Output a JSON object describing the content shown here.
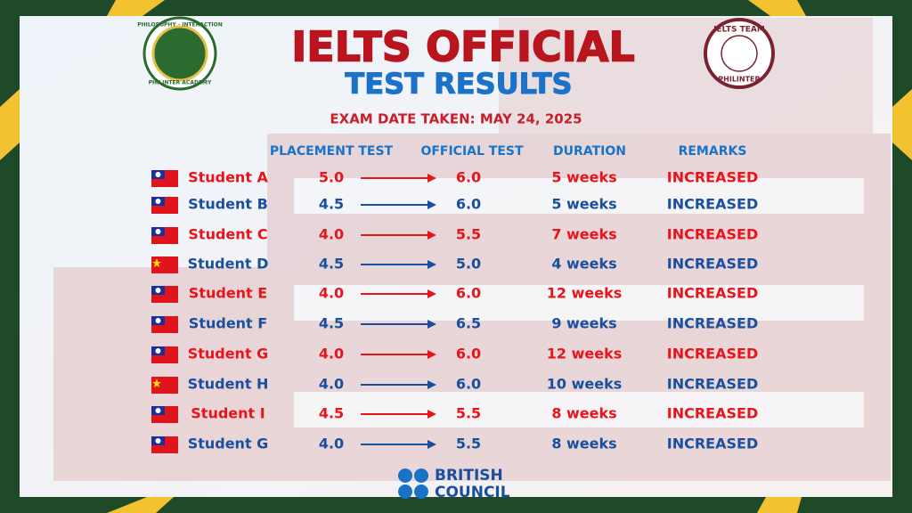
{
  "logo_left": {
    "top_text": "PHILOSOPHY · INTERACTION",
    "bottom_text": "PHILINTER ACADEMY"
  },
  "logo_right": {
    "top_text": "IELTS TEAM",
    "bottom_text": "PHILINTER"
  },
  "header": {
    "title": "IELTS OFFICIAL",
    "subtitle": "TEST RESULTS",
    "exam_date": "EXAM DATE TAKEN: MAY 24, 2025"
  },
  "table": {
    "columns": [
      "PLACEMENT TEST",
      "OFFICIAL TEST",
      "DURATION",
      "REMARKS"
    ],
    "rows": [
      {
        "flag": "taiwan",
        "color": "#e8141c",
        "name": "Student A",
        "placement": "5.0",
        "official": "6.0",
        "duration": "5 weeks",
        "remarks": "INCREASED"
      },
      {
        "flag": "taiwan",
        "color": "#1a4fa0",
        "name": "Student B",
        "placement": "4.5",
        "official": "6.0",
        "duration": "5 weeks",
        "remarks": "INCREASED"
      },
      {
        "flag": "taiwan",
        "color": "#e8141c",
        "name": "Student C",
        "placement": "4.0",
        "official": "5.5",
        "duration": "7 weeks",
        "remarks": "INCREASED"
      },
      {
        "flag": "china",
        "color": "#1a4fa0",
        "name": "Student D",
        "placement": "4.5",
        "official": "5.0",
        "duration": "4 weeks",
        "remarks": "INCREASED"
      },
      {
        "flag": "taiwan",
        "color": "#e8141c",
        "name": "Student E",
        "placement": "4.0",
        "official": "6.0",
        "duration": "12 weeks",
        "remarks": "INCREASED"
      },
      {
        "flag": "taiwan",
        "color": "#1a4fa0",
        "name": "Student F",
        "placement": "4.5",
        "official": "6.5",
        "duration": "9 weeks",
        "remarks": "INCREASED"
      },
      {
        "flag": "taiwan",
        "color": "#e8141c",
        "name": "Student G",
        "placement": "4.0",
        "official": "6.0",
        "duration": "12 weeks",
        "remarks": "INCREASED"
      },
      {
        "flag": "china",
        "color": "#1a4fa0",
        "name": "Student H",
        "placement": "4.0",
        "official": "6.0",
        "duration": "10 weeks",
        "remarks": "INCREASED"
      },
      {
        "flag": "taiwan",
        "color": "#e8141c",
        "name": "Student I",
        "placement": "4.5",
        "official": "5.5",
        "duration": "8 weeks",
        "remarks": "INCREASED"
      },
      {
        "flag": "taiwan",
        "color": "#1a4fa0",
        "name": "Student G",
        "placement": "4.0",
        "official": "5.5",
        "duration": "8 weeks",
        "remarks": "INCREASED"
      }
    ]
  },
  "footer": {
    "brand_line1": "BRITISH",
    "brand_line2": "COUNCIL"
  }
}
